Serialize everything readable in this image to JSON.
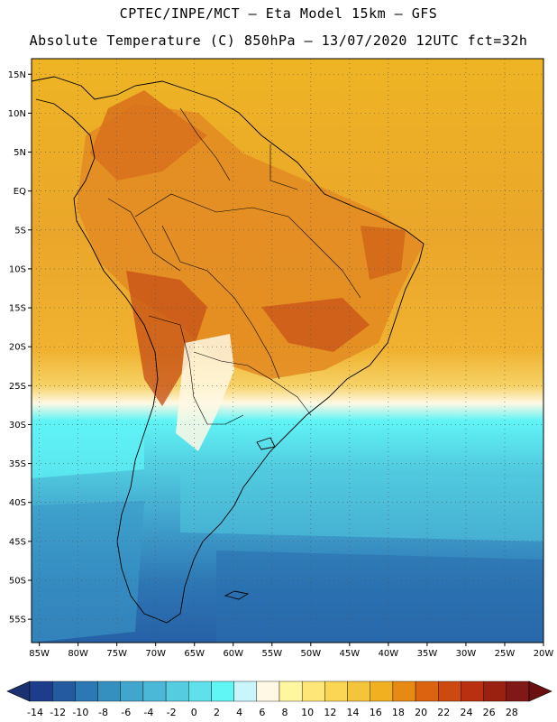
{
  "header": {
    "line1": "CPTEC/INPE/MCT –  Eta Model 15km – GFS",
    "line2": "Absolute Temperature (C) 850hPa – 13/07/2020 12UTC fct=32h"
  },
  "map": {
    "lon_range": [
      -86,
      -20
    ],
    "lat_range": [
      -58,
      17
    ],
    "lon_ticks": [
      {
        "value": -85,
        "label": "85W"
      },
      {
        "value": -80,
        "label": "80W"
      },
      {
        "value": -75,
        "label": "75W"
      },
      {
        "value": -70,
        "label": "70W"
      },
      {
        "value": -65,
        "label": "65W"
      },
      {
        "value": -60,
        "label": "60W"
      },
      {
        "value": -55,
        "label": "55W"
      },
      {
        "value": -50,
        "label": "50W"
      },
      {
        "value": -45,
        "label": "45W"
      },
      {
        "value": -40,
        "label": "40W"
      },
      {
        "value": -35,
        "label": "35W"
      },
      {
        "value": -30,
        "label": "30W"
      },
      {
        "value": -25,
        "label": "25W"
      },
      {
        "value": -20,
        "label": "20W"
      }
    ],
    "lat_ticks": [
      {
        "value": 15,
        "label": "15N"
      },
      {
        "value": 10,
        "label": "10N"
      },
      {
        "value": 5,
        "label": "5N"
      },
      {
        "value": 0,
        "label": "EQ"
      },
      {
        "value": -5,
        "label": "5S"
      },
      {
        "value": -10,
        "label": "10S"
      },
      {
        "value": -15,
        "label": "15S"
      },
      {
        "value": -20,
        "label": "20S"
      },
      {
        "value": -25,
        "label": "25S"
      },
      {
        "value": -30,
        "label": "30S"
      },
      {
        "value": -35,
        "label": "35S"
      },
      {
        "value": -40,
        "label": "40S"
      },
      {
        "value": -45,
        "label": "45S"
      },
      {
        "value": -50,
        "label": "50S"
      },
      {
        "value": -55,
        "label": "55S"
      }
    ],
    "grid": "dotted"
  },
  "colorbar": {
    "labels": [
      "-14",
      "-12",
      "-10",
      "-8",
      "-6",
      "-4",
      "-2",
      "0",
      "2",
      "4",
      "6",
      "8",
      "10",
      "12",
      "14",
      "16",
      "18",
      "20",
      "22",
      "24",
      "26",
      "28"
    ],
    "colors": [
      "#1e3c8c",
      "#235aa0",
      "#2b78b4",
      "#3590c0",
      "#40a6cc",
      "#4ab8d6",
      "#55cce0",
      "#60e0ea",
      "#60f6f6",
      "#c8f6fa",
      "#fff8e4",
      "#fff6a0",
      "#fee678",
      "#fad654",
      "#f4c43a",
      "#f0b020",
      "#e68a14",
      "#dc6410",
      "#cc4a10",
      "#b83010",
      "#9a2010",
      "#801818"
    ],
    "under_color": "#1a3070",
    "over_color": "#6a1010"
  }
}
